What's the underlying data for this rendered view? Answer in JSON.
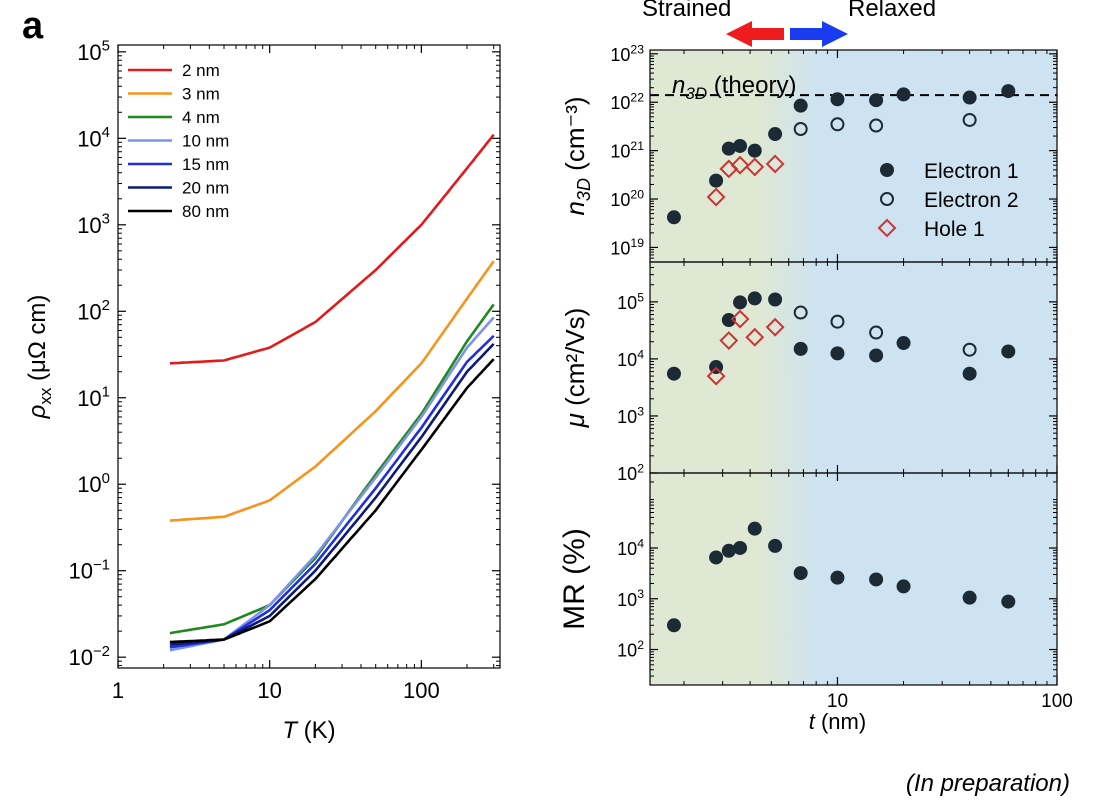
{
  "panel_label": "a",
  "footnote": "(In preparation)",
  "header": {
    "strained": "Strained",
    "relaxed": "Relaxed",
    "strained_color": "#ee1c1c",
    "relaxed_color": "#1a3cf0"
  },
  "colors": {
    "gradient_left": "#dfe8d3",
    "gradient_right": "#cde3f2",
    "dark_marker": "#1b2a35",
    "hole_marker": "#cc3333"
  },
  "chart_data": [
    {
      "id": "resistivity",
      "type": "line",
      "title": "",
      "xlabel": "T",
      "xlabel_unit": "(K)",
      "ylabel_sym": "ρ",
      "ylabel_sub": "xx",
      "ylabel_unit": "(μΩ cm)",
      "xscale": "log",
      "yscale": "log",
      "xlim": [
        1,
        330
      ],
      "ylim": [
        0.0075,
        120000
      ],
      "xticks": [
        {
          "v": 1,
          "label": "1"
        },
        {
          "v": 10,
          "label": "10"
        },
        {
          "v": 100,
          "label": "100"
        }
      ],
      "yticks": [
        {
          "v": 0.01,
          "m": "10",
          "e": "−2"
        },
        {
          "v": 0.1,
          "m": "10",
          "e": "−1"
        },
        {
          "v": 1,
          "m": "10",
          "e": "0"
        },
        {
          "v": 10,
          "m": "10",
          "e": "1"
        },
        {
          "v": 100,
          "m": "10",
          "e": "2"
        },
        {
          "v": 1000,
          "m": "10",
          "e": "3"
        },
        {
          "v": 10000,
          "m": "10",
          "e": "4"
        },
        {
          "v": 100000,
          "m": "10",
          "e": "5"
        }
      ],
      "legend_position": "top-left",
      "series": [
        {
          "name": "2 nm",
          "color": "#e31a1c",
          "points": [
            [
              2.2,
              25
            ],
            [
              5,
              27
            ],
            [
              10,
              38
            ],
            [
              20,
              75
            ],
            [
              50,
              300
            ],
            [
              100,
              1000
            ],
            [
              200,
              4500
            ],
            [
              300,
              11000
            ]
          ]
        },
        {
          "name": "3 nm",
          "color": "#f7941d",
          "points": [
            [
              2.2,
              0.38
            ],
            [
              5,
              0.42
            ],
            [
              10,
              0.65
            ],
            [
              20,
              1.6
            ],
            [
              50,
              7
            ],
            [
              100,
              25
            ],
            [
              200,
              140
            ],
            [
              300,
              380
            ]
          ]
        },
        {
          "name": "4 nm",
          "color": "#1e8a1e",
          "points": [
            [
              2.2,
              0.019
            ],
            [
              5,
              0.024
            ],
            [
              10,
              0.04
            ],
            [
              20,
              0.14
            ],
            [
              50,
              1.3
            ],
            [
              100,
              6.5
            ],
            [
              200,
              45
            ],
            [
              300,
              120
            ]
          ]
        },
        {
          "name": "10 nm",
          "color": "#7f93e8",
          "points": [
            [
              2.2,
              0.012
            ],
            [
              5,
              0.016
            ],
            [
              10,
              0.04
            ],
            [
              20,
              0.15
            ],
            [
              50,
              1.2
            ],
            [
              100,
              6
            ],
            [
              200,
              38
            ],
            [
              300,
              85
            ]
          ]
        },
        {
          "name": "15 nm",
          "color": "#1f2fe0",
          "points": [
            [
              2.2,
              0.013
            ],
            [
              5,
              0.016
            ],
            [
              10,
              0.035
            ],
            [
              20,
              0.12
            ],
            [
              50,
              0.9
            ],
            [
              100,
              4.5
            ],
            [
              200,
              26
            ],
            [
              300,
              52
            ]
          ]
        },
        {
          "name": "20 nm",
          "color": "#0d1a7a",
          "points": [
            [
              2.2,
              0.014
            ],
            [
              5,
              0.016
            ],
            [
              10,
              0.03
            ],
            [
              20,
              0.1
            ],
            [
              50,
              0.7
            ],
            [
              100,
              3.5
            ],
            [
              200,
              20
            ],
            [
              300,
              42
            ]
          ]
        },
        {
          "name": "80 nm",
          "color": "#000000",
          "points": [
            [
              2.2,
              0.015
            ],
            [
              5,
              0.016
            ],
            [
              10,
              0.026
            ],
            [
              20,
              0.08
            ],
            [
              50,
              0.5
            ],
            [
              100,
              2.5
            ],
            [
              200,
              13
            ],
            [
              300,
              28
            ]
          ]
        }
      ]
    },
    {
      "id": "carrier_density",
      "type": "scatter",
      "ylabel_sym": "n",
      "ylabel_sub": "3D",
      "ylabel_unit": "(cm⁻³)",
      "xscale": "log",
      "yscale": "log",
      "xlim": [
        1.4,
        100
      ],
      "ylim": [
        5e+18,
        1.2e+23
      ],
      "yticks": [
        {
          "v": 1e+19,
          "m": "10",
          "e": "19"
        },
        {
          "v": 1e+20,
          "m": "10",
          "e": "20"
        },
        {
          "v": 1e+21,
          "m": "10",
          "e": "21"
        },
        {
          "v": 1e+22,
          "m": "10",
          "e": "22"
        },
        {
          "v": 1e+23,
          "m": "10",
          "e": "23"
        }
      ],
      "theory_line": {
        "y": 1.4e+22,
        "label_sym": "n",
        "label_sub": "3D",
        "label_text": " (theory)"
      },
      "legend_position": "bottom-right",
      "series": [
        {
          "name": "Electron 1",
          "marker": "filled-circle",
          "points": [
            [
              1.8,
              4.2e+19
            ],
            [
              2.8,
              2.4e+20
            ],
            [
              3.2,
              1.1e+21
            ],
            [
              3.6,
              1.25e+21
            ],
            [
              4.2,
              1e+21
            ],
            [
              5.2,
              2.2e+21
            ],
            [
              6.8,
              8.5e+21
            ],
            [
              10,
              1.15e+22
            ],
            [
              15,
              1.1e+22
            ],
            [
              20,
              1.45e+22
            ],
            [
              40,
              1.25e+22
            ],
            [
              60,
              1.7e+22
            ]
          ]
        },
        {
          "name": "Electron 2",
          "marker": "open-circle",
          "points": [
            [
              6.8,
              2.8e+21
            ],
            [
              10,
              3.5e+21
            ],
            [
              15,
              3.3e+21
            ],
            [
              40,
              4.3e+21
            ]
          ]
        },
        {
          "name": "Hole 1",
          "marker": "open-diamond",
          "points": [
            [
              2.8,
              1.1e+20
            ],
            [
              3.2,
              4.2e+20
            ],
            [
              3.6,
              5e+20
            ],
            [
              4.2,
              4.6e+20
            ],
            [
              5.2,
              5.3e+20
            ]
          ]
        }
      ]
    },
    {
      "id": "mobility",
      "type": "scatter",
      "ylabel_sym": "μ",
      "ylabel_unit": "(cm²/Vs)",
      "xscale": "log",
      "yscale": "log",
      "xlim": [
        1.4,
        100
      ],
      "ylim": [
        100,
        500000
      ],
      "yticks": [
        {
          "v": 100,
          "m": "10",
          "e": "2"
        },
        {
          "v": 1000,
          "m": "10",
          "e": "3"
        },
        {
          "v": 10000,
          "m": "10",
          "e": "4"
        },
        {
          "v": 100000,
          "m": "10",
          "e": "5"
        }
      ],
      "series": [
        {
          "name": "Electron 1",
          "marker": "filled-circle",
          "points": [
            [
              1.8,
              5500
            ],
            [
              2.8,
              7200
            ],
            [
              3.2,
              48000
            ],
            [
              3.6,
              98000
            ],
            [
              4.2,
              115000
            ],
            [
              5.2,
              110000
            ],
            [
              6.8,
              15000
            ],
            [
              10,
              12500
            ],
            [
              15,
              11500
            ],
            [
              20,
              19000
            ],
            [
              40,
              5500
            ],
            [
              60,
              13500
            ]
          ]
        },
        {
          "name": "Electron 2",
          "marker": "open-circle",
          "points": [
            [
              6.8,
              65000
            ],
            [
              10,
              45000
            ],
            [
              15,
              29000
            ],
            [
              40,
              14500
            ]
          ]
        },
        {
          "name": "Hole 1",
          "marker": "open-diamond",
          "points": [
            [
              2.8,
              5000
            ],
            [
              3.2,
              21000
            ],
            [
              3.6,
              50000
            ],
            [
              4.2,
              24000
            ],
            [
              5.2,
              36000
            ]
          ]
        }
      ]
    },
    {
      "id": "magnetoresistance",
      "type": "scatter",
      "ylabel_text": "MR (%)",
      "xlabel": "t",
      "xlabel_unit": "(nm)",
      "xscale": "log",
      "yscale": "log",
      "xlim": [
        1.4,
        100
      ],
      "ylim": [
        20,
        300000
      ],
      "xticks": [
        {
          "v": 10,
          "label": "10"
        },
        {
          "v": 100,
          "label": "100"
        }
      ],
      "yticks": [
        {
          "v": 100,
          "m": "10",
          "e": "2"
        },
        {
          "v": 1000,
          "m": "10",
          "e": "3"
        },
        {
          "v": 10000,
          "m": "10",
          "e": "4"
        }
      ],
      "series": [
        {
          "name": "Electron 1",
          "marker": "filled-circle",
          "points": [
            [
              1.8,
              300
            ],
            [
              2.8,
              6500
            ],
            [
              3.2,
              8800
            ],
            [
              3.6,
              10000
            ],
            [
              4.2,
              24000
            ],
            [
              5.2,
              11000
            ],
            [
              6.8,
              3200
            ],
            [
              10,
              2600
            ],
            [
              15,
              2400
            ],
            [
              20,
              1750
            ],
            [
              40,
              1050
            ],
            [
              60,
              880
            ]
          ]
        }
      ]
    }
  ]
}
